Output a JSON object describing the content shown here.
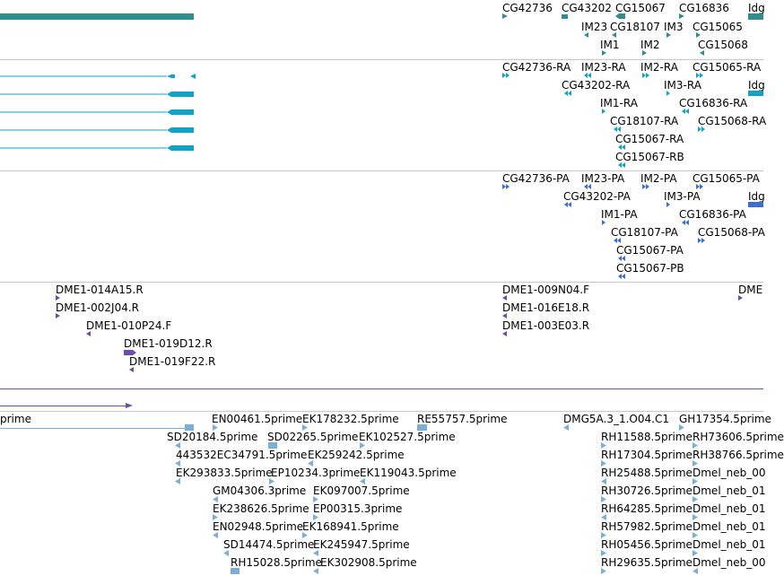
{
  "colors": {
    "gene": "#2f8e8e",
    "transcript": "#12a3c4",
    "protein": "#3a6fd0",
    "clone": "#6a4fa8",
    "est": "#7ab0d8",
    "separator": "#c8c8c8",
    "cdna_line": "#6a4fa8"
  },
  "tracks": {
    "genes": {
      "labels": [
        "CG42736",
        "CG43202",
        "CG15067",
        "CG16836",
        "Idg",
        "IM23",
        "CG18107",
        "IM3",
        "CG15065",
        "IM1",
        "IM2",
        "CG15068"
      ]
    },
    "transcripts": {
      "labels": [
        "CG42736-RA",
        "IM23-RA",
        "IM2-RA",
        "CG15065-RA",
        "CG43202-RA",
        "IM3-RA",
        "Idg",
        "IM1-RA",
        "CG16836-RA",
        "CG18107-RA",
        "CG15068-RA",
        "CG15067-RA",
        "CG15067-RB"
      ]
    },
    "proteins": {
      "labels": [
        "CG42736-PA",
        "IM23-PA",
        "IM2-PA",
        "CG15065-PA",
        "CG43202-PA",
        "IM3-PA",
        "Idg",
        "IM1-PA",
        "CG16836-PA",
        "CG18107-PA",
        "CG15068-PA",
        "CG15067-PA",
        "CG15067-PB"
      ]
    },
    "clones": {
      "labels": [
        "DME1-014A15.R",
        "DME1-002J04.R",
        "DME1-010P24.F",
        "DME1-019D12.R",
        "DME1-019F22.R",
        "DME1-009N04.F",
        "DME1-016E18.R",
        "DME1-003E03.R",
        "DME"
      ]
    },
    "ests": {
      "labels": [
        "prime",
        "EN00461.5prime",
        "EK178232.5prime",
        "RE55757.5prime",
        "DMG5A.3_1.O04.C1",
        "GH17354.5prime",
        "SD20184.5prime",
        "SD02265.5prime",
        "EK102527.5prime",
        "RH11588.5prime",
        "RH73606.5prime",
        "443532EC34791.5prime",
        "EK259242.5prime",
        "RH17304.5prime",
        "RH38766.5prime",
        "EK293833.5prime",
        "EP10234.3prime",
        "EK119043.5prime",
        "RH25488.5prime",
        "Dmel_neb_00",
        "GM04306.3prime",
        "EK097007.5prime",
        "RH30726.5prime",
        "Dmel_neb_01",
        "EK238626.5prime",
        "EP00315.3prime",
        "RH64285.5prime",
        "Dmel_neb_01",
        "EN02948.5prime",
        "EK168941.5prime",
        "RH57982.5prime",
        "Dmel_neb_01",
        "SD14474.5prime",
        "EK245947.5prime",
        "RH05456.5prime",
        "Dmel_neb_01",
        "RH15028.5prime",
        "EK302908.5prime",
        "RH29635.5prime",
        "Dmel_neb_00"
      ]
    }
  }
}
